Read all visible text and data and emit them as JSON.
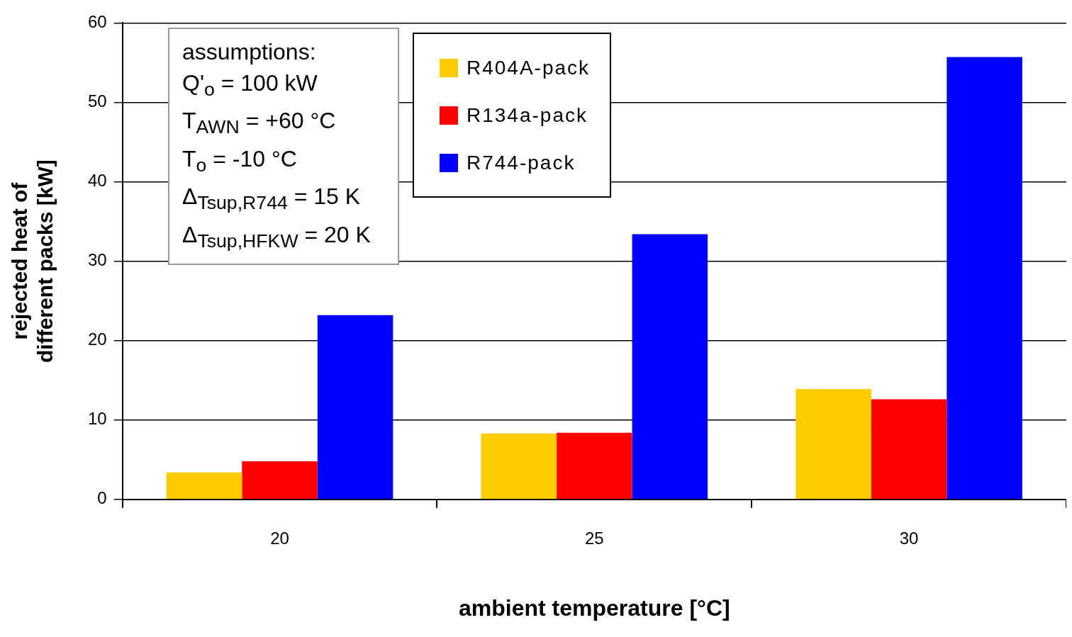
{
  "chart_data": {
    "type": "bar",
    "xlabel": "ambient temperature [°C]",
    "ylabel": "rejected heat of different packs [kW]",
    "categories": [
      "20",
      "25",
      "30"
    ],
    "series": [
      {
        "name": "R404A-pack",
        "color": "#ffcc00",
        "values": [
          3.4,
          8.3,
          13.9
        ]
      },
      {
        "name": "R134a-pack",
        "color": "#ff0000",
        "values": [
          4.8,
          8.4,
          12.6
        ]
      },
      {
        "name": "R744-pack",
        "color": "#0000ff",
        "values": [
          23.2,
          33.4,
          55.7
        ]
      }
    ],
    "ylim": [
      0,
      60
    ],
    "yticks": [
      0,
      10,
      20,
      30,
      40,
      50,
      60
    ],
    "grid": "y",
    "legend": "top",
    "annotations": [
      "assumptions:",
      "Q'$_{o}$ = 100 kW",
      "T$_{AWN}$ = +60 °C",
      "T$_{o}$ = -10 °C",
      "Δ$_{Tsup,R744}$ = 15 K",
      "Δ$_{Tsup,HFKW}$ = 20 K"
    ]
  }
}
